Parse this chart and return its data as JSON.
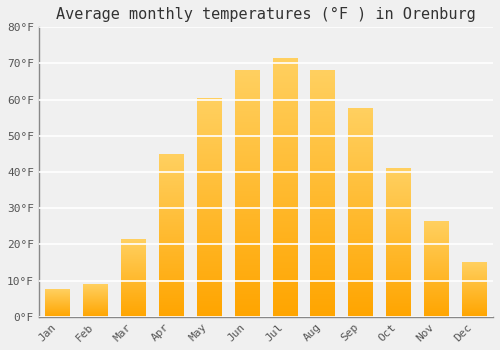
{
  "title": "Average monthly temperatures (°F ) in Orenburg",
  "months": [
    "Jan",
    "Feb",
    "Mar",
    "Apr",
    "May",
    "Jun",
    "Jul",
    "Aug",
    "Sep",
    "Oct",
    "Nov",
    "Dec"
  ],
  "values": [
    7.5,
    9.0,
    21.5,
    45.0,
    60.5,
    68.0,
    71.5,
    68.0,
    57.5,
    41.0,
    26.5,
    15.0
  ],
  "bar_color_bottom": "#FFA500",
  "bar_color_top": "#FFD060",
  "ylim": [
    0,
    80
  ],
  "yticks": [
    0,
    10,
    20,
    30,
    40,
    50,
    60,
    70,
    80
  ],
  "ytick_labels": [
    "0°F",
    "10°F",
    "20°F",
    "30°F",
    "40°F",
    "50°F",
    "60°F",
    "70°F",
    "80°F"
  ],
  "background_color": "#f0f0f0",
  "plot_bg_color": "#f0f0f0",
  "grid_color": "#ffffff",
  "title_fontsize": 11,
  "tick_fontsize": 8,
  "font_family": "monospace",
  "bar_width": 0.65,
  "left_spine_color": "#888888"
}
